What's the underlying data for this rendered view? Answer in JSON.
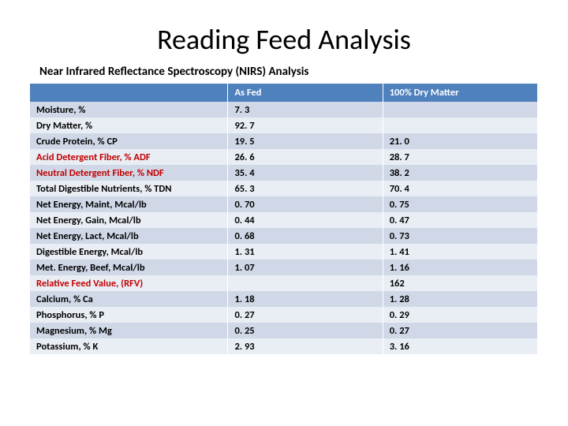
{
  "title": "Reading Feed Analysis",
  "subtitle": "Near Infrared Reflectance Spectroscopy (NIRS) Analysis",
  "colors": {
    "header_bg": "#4f81bd",
    "header_text": "#ffffff",
    "band_a": "#d0d8e8",
    "band_b": "#e9edf4",
    "text": "#000000",
    "red_text": "#c00000",
    "background": "#ffffff"
  },
  "typography": {
    "title_fontsize": 36,
    "subtitle_fontsize": 15,
    "table_fontsize": 12.5,
    "font_family": "Calibri"
  },
  "table": {
    "columns": [
      "",
      "As Fed",
      "100% Dry Matter"
    ],
    "column_widths_pct": [
      39,
      30.5,
      30.5
    ],
    "rows": [
      {
        "label": "Moisture, %",
        "as_fed": "7. 3",
        "dm": "",
        "red": false
      },
      {
        "label": "Dry Matter, %",
        "as_fed": "92. 7",
        "dm": "",
        "red": false
      },
      {
        "label": "Crude Protein, % CP",
        "as_fed": "19. 5",
        "dm": "21. 0",
        "red": false
      },
      {
        "label": "Acid Detergent Fiber, % ADF",
        "as_fed": "26. 6",
        "dm": "28. 7",
        "red": true
      },
      {
        "label": "Neutral Detergent Fiber, % NDF",
        "as_fed": "35. 4",
        "dm": "38. 2",
        "red": true
      },
      {
        "label": "Total Digestible Nutrients, % TDN",
        "as_fed": "65. 3",
        "dm": "70. 4",
        "red": false
      },
      {
        "label": "Net Energy, Maint, Mcal/lb",
        "as_fed": "0. 70",
        "dm": "0. 75",
        "red": false
      },
      {
        "label": "Net Energy, Gain, Mcal/lb",
        "as_fed": "0. 44",
        "dm": "0. 47",
        "red": false
      },
      {
        "label": "Net Energy, Lact, Mcal/lb",
        "as_fed": "0. 68",
        "dm": "0. 73",
        "red": false
      },
      {
        "label": "Digestible Energy, Mcal/lb",
        "as_fed": "1. 31",
        "dm": "1. 41",
        "red": false
      },
      {
        "label": "Met. Energy, Beef, Mcal/lb",
        "as_fed": "1. 07",
        "dm": "1. 16",
        "red": false
      },
      {
        "label": "Relative Feed Value, (RFV)",
        "as_fed": "",
        "dm": "162",
        "red": true
      },
      {
        "label": "Calcium, % Ca",
        "as_fed": "1. 18",
        "dm": "1. 28",
        "red": false
      },
      {
        "label": "Phosphorus, % P",
        "as_fed": "0. 27",
        "dm": "0. 29",
        "red": false
      },
      {
        "label": "Magnesium, % Mg",
        "as_fed": "0. 25",
        "dm": "0. 27",
        "red": false
      },
      {
        "label": "Potassium, % K",
        "as_fed": "2. 93",
        "dm": "3. 16",
        "red": false
      }
    ]
  }
}
